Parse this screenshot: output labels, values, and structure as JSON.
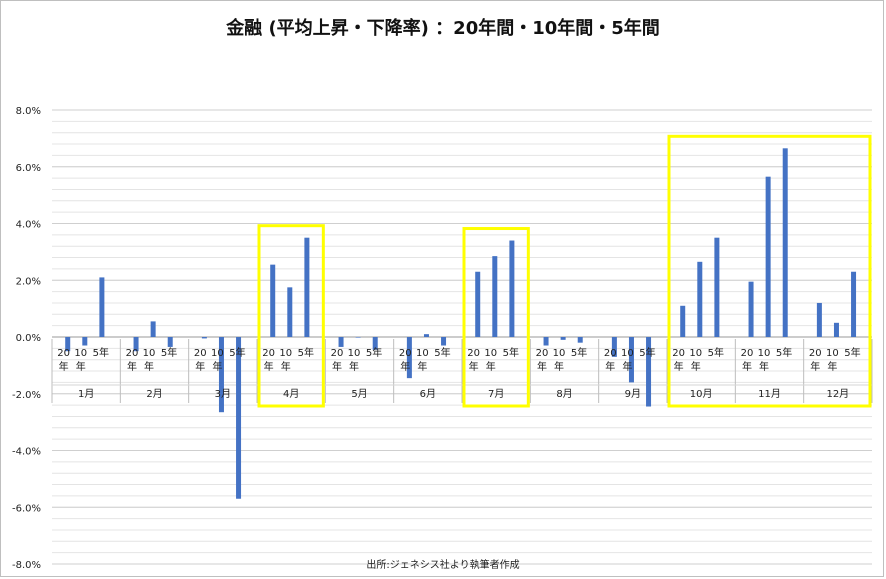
{
  "chart_data": {
    "type": "bar",
    "title": "金融 (平均上昇・下降率) ：20年間・10年間・5年間",
    "source": "出所:ジェネシス社より執筆者作成",
    "ylim": [
      -8.0,
      8.0
    ],
    "yticks": [
      "8.0%",
      "6.0%",
      "4.0%",
      "2.0%",
      "0.0%",
      "-2.0%",
      "-4.0%",
      "-6.0%",
      "-8.0%"
    ],
    "grid": true,
    "bar_color": "#4472c4",
    "highlight_color": "#ffff00",
    "subcategories": [
      "20年",
      "10年",
      "5年"
    ],
    "groups": [
      {
        "label": "1月",
        "values": [
          -0.5,
          -0.3,
          2.1
        ]
      },
      {
        "label": "2月",
        "values": [
          -0.5,
          0.55,
          -0.35
        ]
      },
      {
        "label": "3月",
        "values": [
          -0.05,
          -2.65,
          -5.7
        ]
      },
      {
        "label": "4月",
        "values": [
          2.55,
          1.75,
          3.5
        ]
      },
      {
        "label": "5月",
        "values": [
          -0.35,
          0.0,
          -0.45
        ]
      },
      {
        "label": "6月",
        "values": [
          -1.45,
          0.1,
          -0.3
        ]
      },
      {
        "label": "7月",
        "values": [
          2.3,
          2.85,
          3.4
        ]
      },
      {
        "label": "8月",
        "values": [
          -0.3,
          -0.1,
          -0.2
        ]
      },
      {
        "label": "9月",
        "values": [
          -0.7,
          -1.6,
          -2.45
        ]
      },
      {
        "label": "10月",
        "values": [
          1.1,
          2.65,
          3.5
        ]
      },
      {
        "label": "11月",
        "values": [
          1.95,
          5.65,
          6.65
        ]
      },
      {
        "label": "12月",
        "values": [
          1.2,
          0.5,
          2.3
        ]
      }
    ],
    "highlighted_groups": [
      [
        "4月"
      ],
      [
        "7月"
      ],
      [
        "10月",
        "11月",
        "12月"
      ]
    ]
  }
}
